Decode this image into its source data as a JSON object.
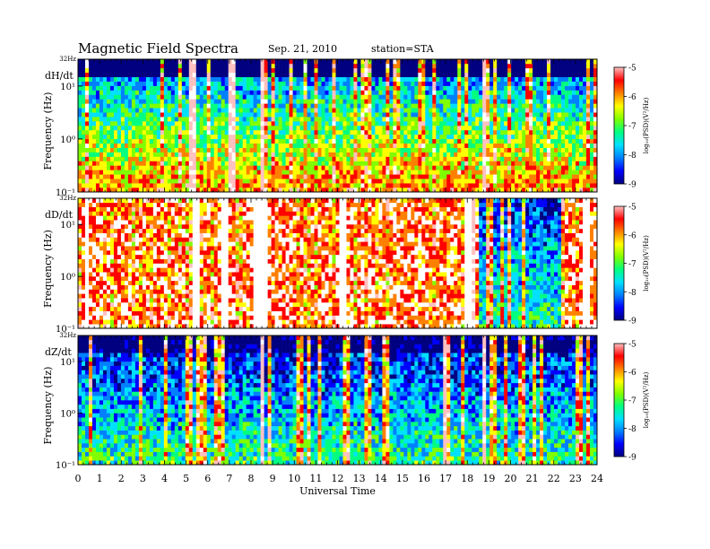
{
  "header": {
    "title": "Magnetic  Field  Spectra",
    "date": "Sep. 21, 2010",
    "station": "station=STA"
  },
  "colors": {
    "scale": [
      "#000080",
      "#0000ff",
      "#0080ff",
      "#00e0ff",
      "#00ff80",
      "#80ff00",
      "#ffff00",
      "#ff8000",
      "#ff0000",
      "#ffc0c0"
    ]
  },
  "chart_data": [
    {
      "type": "heatmap",
      "panel_label": "dH/dt",
      "ylabel": "Frequency  (Hz)",
      "y_top_label": "32Hz",
      "yticks": [
        {
          "value": 10,
          "label": "10¹"
        },
        {
          "value": 1,
          "label": "10⁰"
        },
        {
          "value": 0.1,
          "label": "10⁻¹"
        }
      ],
      "xlim": [
        0,
        24
      ],
      "ylim": [
        0.1,
        32
      ],
      "yscale": "log",
      "colorbar": {
        "label": "log₁₀(PSD)(V²/Hz)",
        "ticks": [
          -5,
          -6,
          -7,
          -8,
          -9
        ],
        "range": [
          -9,
          -5
        ]
      },
      "data_gaps_hours": [
        [
          1.12,
          1.2
        ],
        [
          5.12,
          5.5
        ],
        [
          7.0,
          7.22
        ],
        [
          8.5,
          8.62
        ],
        [
          18.75,
          18.85
        ],
        [
          22.62,
          22.72
        ]
      ]
    },
    {
      "type": "heatmap",
      "panel_label": "dD/dt",
      "ylabel": "Frequency  (Hz)",
      "y_top_label": "32Hz",
      "yticks": [
        {
          "value": 10,
          "label": "10¹"
        },
        {
          "value": 1,
          "label": "10⁰"
        },
        {
          "value": 0.1,
          "label": "10⁻¹"
        }
      ],
      "xlim": [
        0,
        24
      ],
      "ylim": [
        0.1,
        32
      ],
      "yscale": "log",
      "colorbar": {
        "label": "log₁₀(PSD)(V²/Hz)",
        "ticks": [
          -5,
          -6,
          -7,
          -8,
          -9
        ],
        "range": [
          -9,
          -5
        ]
      },
      "data_gaps_hours": [
        [
          0.3,
          0.55
        ],
        [
          5.3,
          5.6
        ],
        [
          6.6,
          7.0
        ],
        [
          8.1,
          8.8
        ],
        [
          12.1,
          12.45
        ],
        [
          17.9,
          18.3
        ],
        [
          23.4,
          23.7
        ]
      ]
    },
    {
      "type": "heatmap",
      "panel_label": "dZ/dt",
      "ylabel": "Frequency  (Hz)",
      "y_top_label": "32Hz",
      "yticks": [
        {
          "value": 10,
          "label": "10¹"
        },
        {
          "value": 1,
          "label": "10⁰"
        },
        {
          "value": 0.1,
          "label": "10⁻¹"
        }
      ],
      "xlim": [
        0,
        24
      ],
      "ylim": [
        0.1,
        32
      ],
      "yscale": "log",
      "colorbar": {
        "label": "log₁₀(PSD)(V²/Hz)",
        "ticks": [
          -5,
          -6,
          -7,
          -8,
          -9
        ],
        "range": [
          -9,
          -5
        ]
      },
      "data_gaps_hours": [
        [
          5.55,
          5.7
        ],
        [
          8.4,
          8.55
        ],
        [
          16.9,
          17.0
        ],
        [
          18.7,
          18.8
        ]
      ],
      "xlabel": "Universal Time",
      "xticks": [
        0,
        1,
        2,
        3,
        4,
        5,
        6,
        7,
        8,
        9,
        10,
        11,
        12,
        13,
        14,
        15,
        16,
        17,
        18,
        19,
        20,
        21,
        22,
        23,
        24
      ]
    }
  ]
}
